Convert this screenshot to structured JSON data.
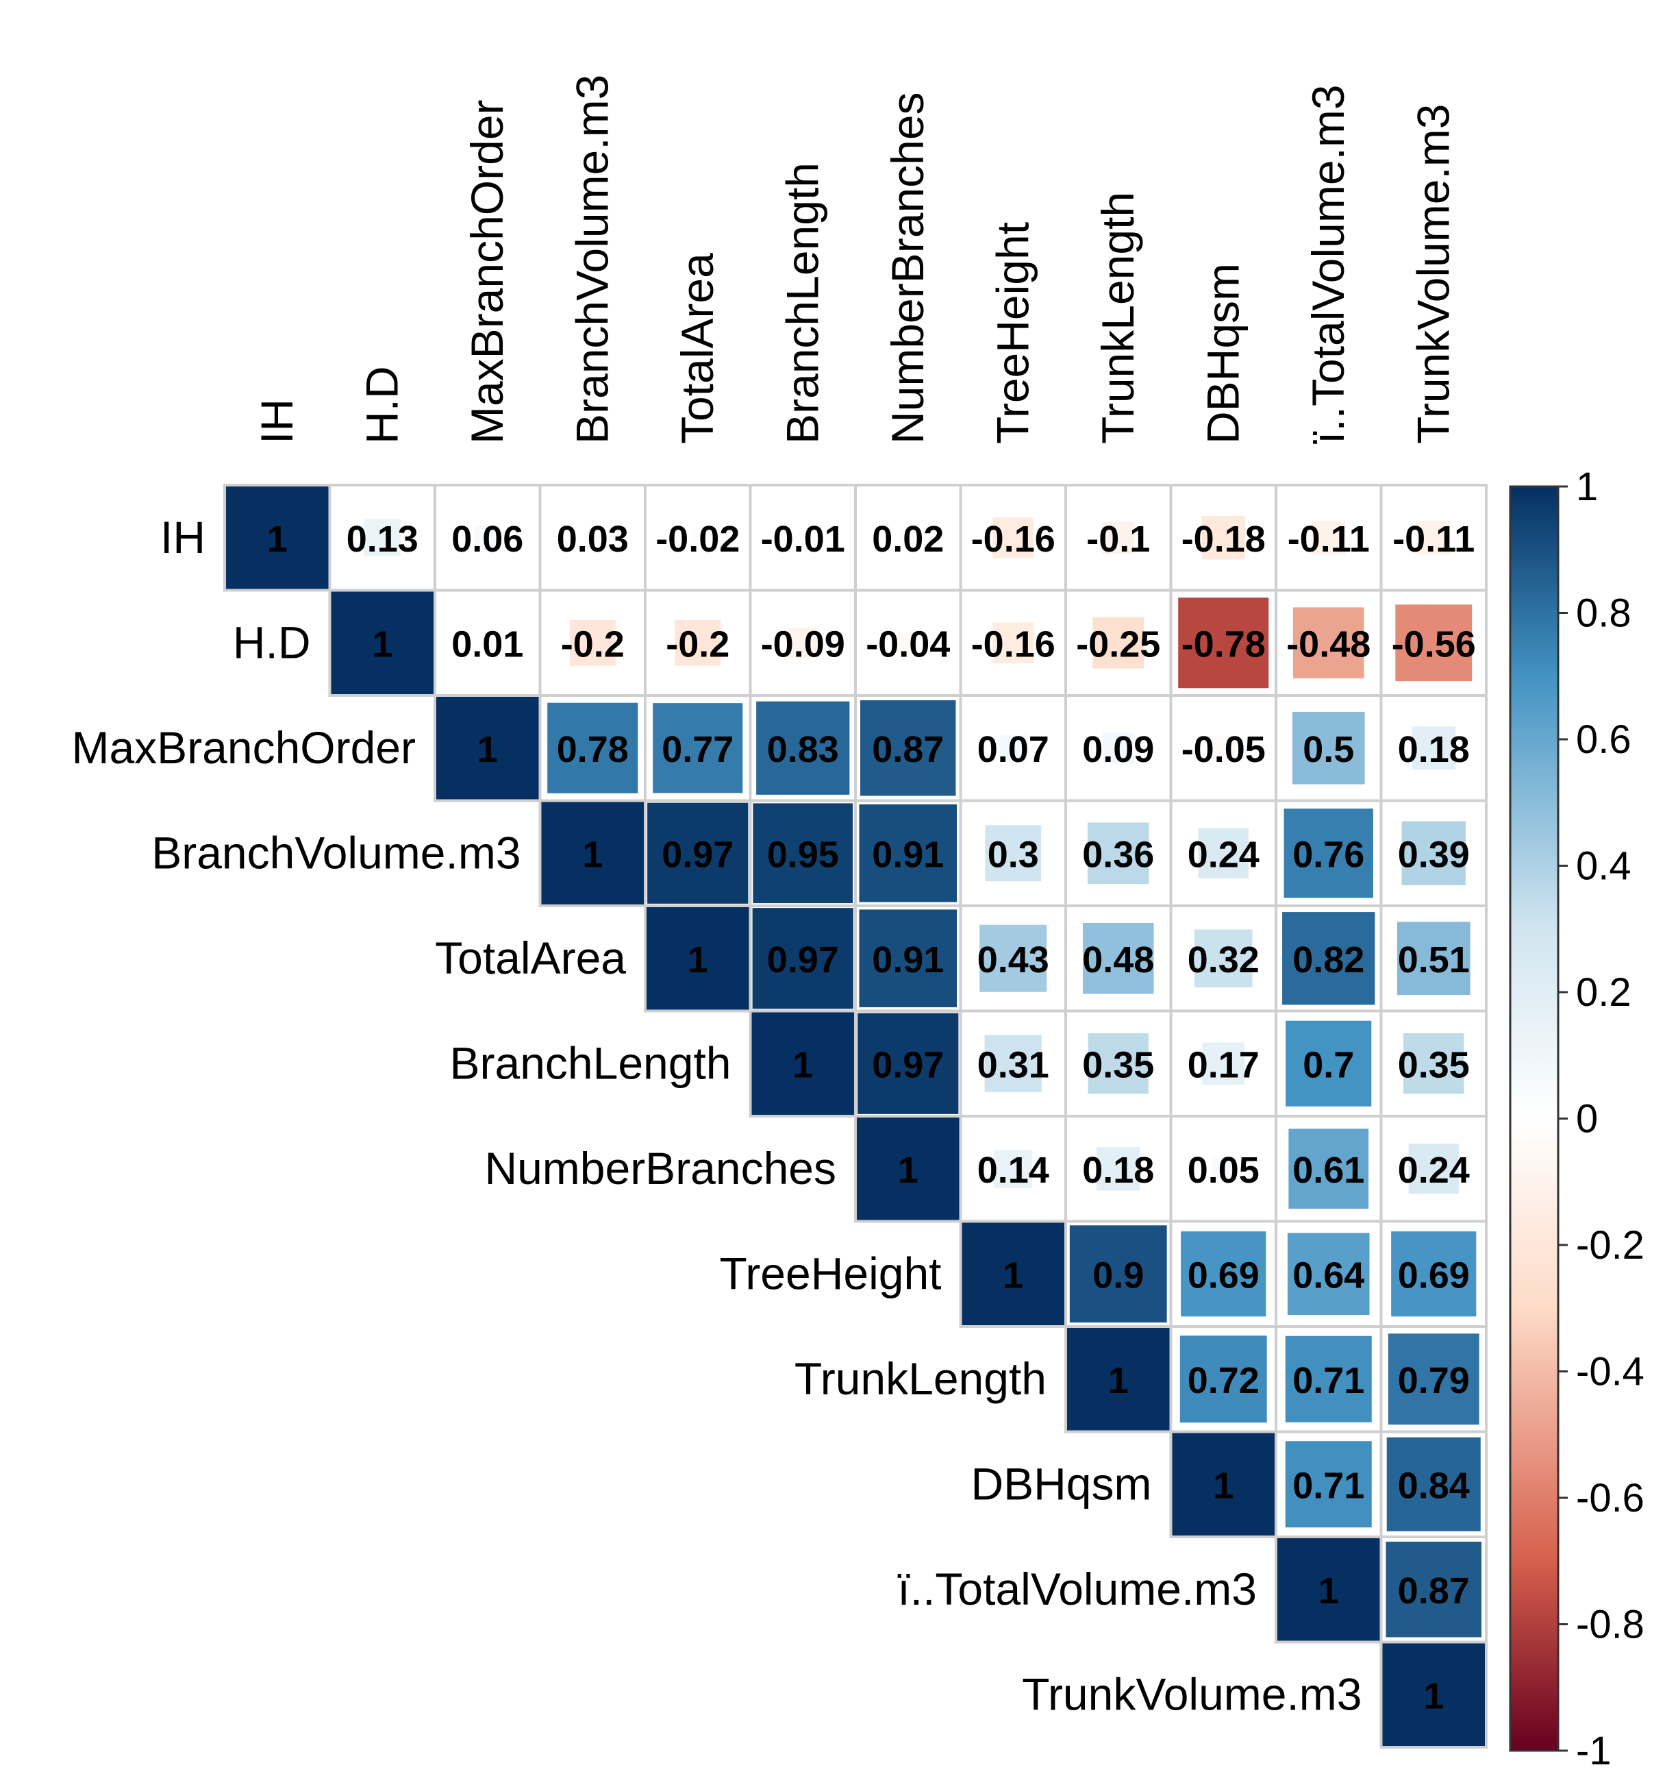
{
  "chart_data": {
    "type": "heatmap",
    "title": "",
    "layout": "upper",
    "variables": [
      "IH",
      "H.D",
      "MaxBranchOrder",
      "BranchVolume.m3",
      "TotalArea",
      "BranchLength",
      "NumberBranches",
      "TreeHeight",
      "TrunkLength",
      "DBHqsm",
      "ï..TotalVolume.m3",
      "TrunkVolume.m3"
    ],
    "value_labels": [
      [
        "1",
        "0.13",
        "0.06",
        "0.03",
        "-0.02",
        "-0.01",
        "0.02",
        "-0.16",
        "-0.1",
        "-0.18",
        "-0.11",
        "-0.11"
      ],
      [
        "",
        "1",
        "0.01",
        "-0.2",
        "-0.2",
        "-0.09",
        "-0.04",
        "-0.16",
        "-0.25",
        "-0.78",
        "-0.48",
        "-0.56"
      ],
      [
        "",
        "",
        "1",
        "0.78",
        "0.77",
        "0.83",
        "0.87",
        "0.07",
        "0.09",
        "-0.05",
        "0.5",
        "0.18"
      ],
      [
        "",
        "",
        "",
        "1",
        "0.97",
        "0.95",
        "0.91",
        "0.3",
        "0.36",
        "0.24",
        "0.76",
        "0.39"
      ],
      [
        "",
        "",
        "",
        "",
        "1",
        "0.97",
        "0.91",
        "0.43",
        "0.48",
        "0.32",
        "0.82",
        "0.51"
      ],
      [
        "",
        "",
        "",
        "",
        "",
        "1",
        "0.97",
        "0.31",
        "0.35",
        "0.17",
        "0.7",
        "0.35"
      ],
      [
        "",
        "",
        "",
        "",
        "",
        "",
        "1",
        "0.14",
        "0.18",
        "0.05",
        "0.61",
        "0.24"
      ],
      [
        "",
        "",
        "",
        "",
        "",
        "",
        "",
        "1",
        "0.9",
        "0.69",
        "0.64",
        "0.69"
      ],
      [
        "",
        "",
        "",
        "",
        "",
        "",
        "",
        "",
        "1",
        "0.72",
        "0.71",
        "0.79"
      ],
      [
        "",
        "",
        "",
        "",
        "",
        "",
        "",
        "",
        "",
        "1",
        "0.71",
        "0.84"
      ],
      [
        "",
        "",
        "",
        "",
        "",
        "",
        "",
        "",
        "",
        "",
        "1",
        "0.87"
      ],
      [
        "",
        "",
        "",
        "",
        "",
        "",
        "",
        "",
        "",
        "",
        "",
        "1"
      ]
    ],
    "colorbar": {
      "range": [
        -1,
        1
      ],
      "ticks": [
        "1",
        "0.8",
        "0.6",
        "0.4",
        "0.2",
        "0",
        "-0.2",
        "-0.4",
        "-0.6",
        "-0.8",
        "-1"
      ],
      "colors": {
        "neg_strong": "#67001f",
        "neg_mid": "#d6604d",
        "neg_light": "#fddbc7",
        "zero": "#ffffff",
        "pos_light": "#d1e5f0",
        "pos_mid": "#4393c3",
        "pos_strong": "#053061"
      }
    }
  }
}
